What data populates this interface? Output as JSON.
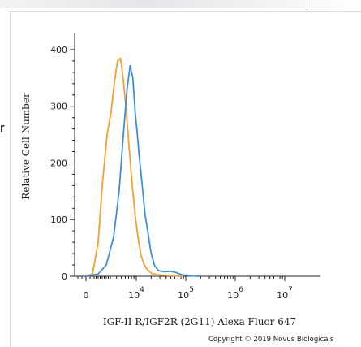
{
  "page_fragment": "r",
  "copyright": "Copyright © 2019 Novus Biologicals",
  "chart_data": {
    "type": "line",
    "title": "",
    "xlabel": "IGF-II R/IGF2R (2G11) Alexa Fluor 647",
    "ylabel": "Relative Cell Number",
    "x_scale": "biexponential",
    "y_ticks": [
      0,
      100,
      200,
      300,
      400
    ],
    "ylim": [
      0,
      430
    ],
    "x_tick_labels": [
      {
        "base": "0",
        "exp": ""
      },
      {
        "base": "10",
        "exp": "4"
      },
      {
        "base": "10",
        "exp": "5"
      },
      {
        "base": "10",
        "exp": "6"
      },
      {
        "base": "10",
        "exp": "7"
      }
    ],
    "grid": false,
    "legend": "none",
    "series": [
      {
        "color": "#f5a033",
        "x": [
          0,
          800,
          1500,
          2000,
          2600,
          3100,
          3600,
          4200,
          4800,
          5500,
          6300,
          7200,
          8200,
          9400,
          10800,
          12400,
          14400,
          17000,
          20500,
          26000,
          34000,
          50000,
          90000
        ],
        "y": [
          0,
          4,
          60,
          160,
          250,
          290,
          340,
          380,
          385,
          345,
          290,
          225,
          165,
          110,
          70,
          38,
          20,
          11,
          5,
          3,
          2,
          1,
          0
        ]
      },
      {
        "color": "#3d8fdc",
        "x": [
          0,
          1500,
          2500,
          3500,
          4500,
          5500,
          6500,
          7500,
          8500,
          9500,
          10500,
          11500,
          12500,
          13500,
          15000,
          17000,
          19500,
          23000,
          28000,
          36000,
          48000,
          62000,
          80000,
          110000,
          200000
        ],
        "y": [
          0,
          4,
          20,
          70,
          150,
          250,
          330,
          372,
          350,
          290,
          250,
          210,
          180,
          150,
          110,
          80,
          45,
          20,
          10,
          8,
          9,
          7,
          3,
          1,
          0
        ]
      }
    ]
  }
}
